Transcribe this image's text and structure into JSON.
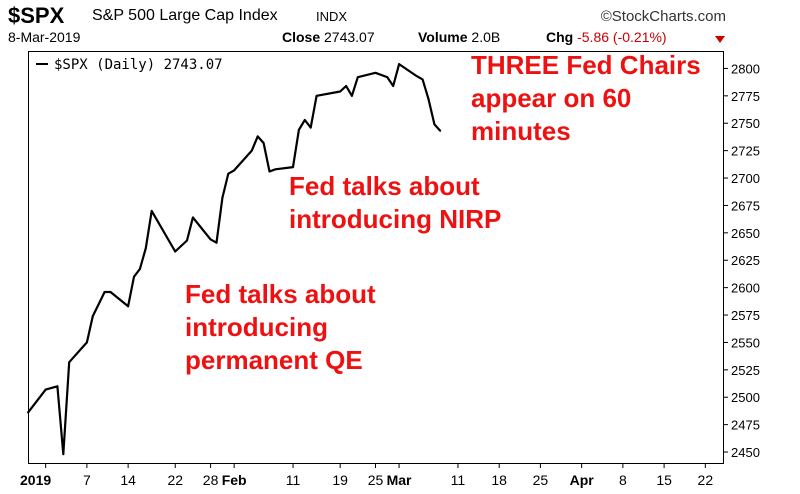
{
  "header": {
    "symbol": "$SPX",
    "index_name": "S&P 500 Large Cap Index",
    "exchange": "INDX",
    "brand": "©StockCharts.com",
    "date": "8-Mar-2019",
    "close_label": "Close",
    "close_value": "2743.07",
    "volume_label": "Volume",
    "volume_value": "2.0B",
    "chg_label": "Chg",
    "chg_value": "-5.86 (-0.21%)",
    "chg_color": "#cc0000"
  },
  "chart_data": {
    "type": "line",
    "legend": "$SPX (Daily) 2743.07",
    "legend_placement": "top-left",
    "ylim": [
      2440,
      2815
    ],
    "y_ticks": [
      2450,
      2475,
      2500,
      2525,
      2550,
      2575,
      2600,
      2625,
      2650,
      2675,
      2700,
      2725,
      2750,
      2775,
      2800
    ],
    "x_ticks": [
      {
        "date": "2018-12-31",
        "label": "2019",
        "bold": true
      },
      {
        "date": "2019-01-07",
        "label": "7",
        "bold": false
      },
      {
        "date": "2019-01-14",
        "label": "14",
        "bold": false
      },
      {
        "date": "2019-01-22",
        "label": "22",
        "bold": false
      },
      {
        "date": "2019-01-28",
        "label": "28",
        "bold": false
      },
      {
        "date": "2019-02-01",
        "label": "Feb",
        "bold": true
      },
      {
        "date": "2019-02-11",
        "label": "11",
        "bold": false
      },
      {
        "date": "2019-02-19",
        "label": "19",
        "bold": false
      },
      {
        "date": "2019-02-25",
        "label": "25",
        "bold": false
      },
      {
        "date": "2019-03-01",
        "label": "Mar",
        "bold": true
      },
      {
        "date": "2019-03-11",
        "label": "11",
        "bold": false
      },
      {
        "date": "2019-03-18",
        "label": "18",
        "bold": false
      },
      {
        "date": "2019-03-25",
        "label": "25",
        "bold": false
      },
      {
        "date": "2019-04-01",
        "label": "Apr",
        "bold": true
      },
      {
        "date": "2019-04-08",
        "label": "8",
        "bold": false
      },
      {
        "date": "2019-04-15",
        "label": "15",
        "bold": false
      },
      {
        "date": "2019-04-22",
        "label": "22",
        "bold": false
      }
    ],
    "x_range": [
      "2018-12-28",
      "2019-04-25"
    ],
    "line_color": "#000000",
    "grid": false,
    "series": [
      {
        "name": "$SPX (Daily)",
        "dates": [
          "2018-12-28",
          "2018-12-31",
          "2019-01-02",
          "2019-01-03",
          "2019-01-04",
          "2019-01-07",
          "2019-01-08",
          "2019-01-09",
          "2019-01-10",
          "2019-01-11",
          "2019-01-14",
          "2019-01-15",
          "2019-01-16",
          "2019-01-17",
          "2019-01-18",
          "2019-01-22",
          "2019-01-23",
          "2019-01-24",
          "2019-01-25",
          "2019-01-28",
          "2019-01-29",
          "2019-01-30",
          "2019-01-31",
          "2019-02-01",
          "2019-02-04",
          "2019-02-05",
          "2019-02-06",
          "2019-02-07",
          "2019-02-08",
          "2019-02-11",
          "2019-02-12",
          "2019-02-13",
          "2019-02-14",
          "2019-02-15",
          "2019-02-19",
          "2019-02-20",
          "2019-02-21",
          "2019-02-22",
          "2019-02-25",
          "2019-02-26",
          "2019-02-27",
          "2019-02-28",
          "2019-03-01",
          "2019-03-04",
          "2019-03-05",
          "2019-03-06",
          "2019-03-07",
          "2019-03-08"
        ],
        "values": [
          2486,
          2507,
          2510,
          2448,
          2532,
          2550,
          2574,
          2585,
          2596,
          2596,
          2583,
          2610,
          2617,
          2636,
          2670,
          2633,
          2638,
          2643,
          2664,
          2644,
          2641,
          2682,
          2704,
          2707,
          2725,
          2738,
          2732,
          2706,
          2708,
          2710,
          2744,
          2753,
          2746,
          2775,
          2779,
          2784,
          2775,
          2792,
          2796,
          2794,
          2792,
          2784,
          2804,
          2793,
          2790,
          2772,
          2749,
          2743
        ]
      }
    ],
    "annotations": [
      {
        "lines": [
          "THREE Fed Chairs",
          "appear on 60",
          "minutes"
        ],
        "color": "#ee1111"
      },
      {
        "lines": [
          "Fed talks about",
          "introducing NIRP"
        ],
        "color": "#ee1111"
      },
      {
        "lines": [
          "Fed talks about",
          "introducing",
          "permanent QE"
        ],
        "color": "#ee1111"
      }
    ]
  }
}
